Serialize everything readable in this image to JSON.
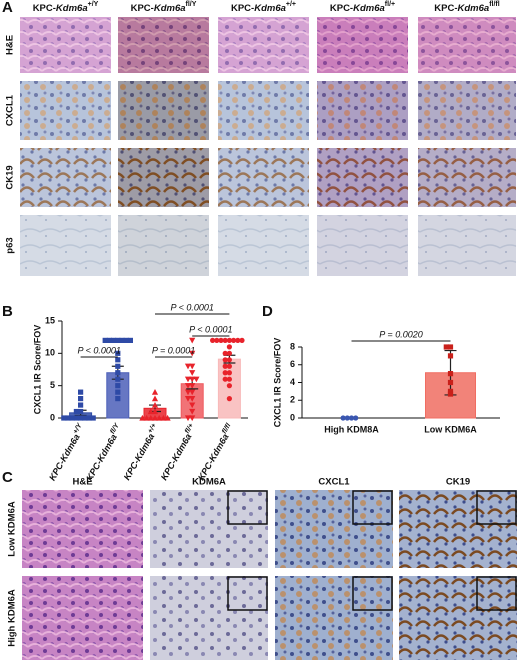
{
  "panel_labels": [
    "A",
    "B",
    "C",
    "D"
  ],
  "panel_a": {
    "columns": [
      {
        "prefix": "KPC-",
        "gene": "Kdm6a",
        "sup": "+/Y"
      },
      {
        "prefix": "KPC-",
        "gene": "Kdm6a",
        "sup": "fl/Y"
      },
      {
        "prefix": "KPC-",
        "gene": "Kdm6a",
        "sup": "+/+"
      },
      {
        "prefix": "KPC-",
        "gene": "Kdm6a",
        "sup": "fl/+"
      },
      {
        "prefix": "KPC-",
        "gene": "Kdm6a",
        "sup": "fl/fl"
      }
    ],
    "rows": [
      "H&E",
      "CXCL1",
      "CK19",
      "p63"
    ]
  },
  "panel_c": {
    "columns": [
      "H&E",
      "KDM6A",
      "CXCL1",
      "CK19"
    ],
    "rows": [
      "Low KDM6A",
      "High KDM6A"
    ]
  },
  "chart_data": [
    {
      "type": "bar",
      "y_label": "CXCL1 IR Score/FOV",
      "categories": [
        {
          "name": "KPC-Kdm6a",
          "sup": "+/Y"
        },
        {
          "name": "KPC-Kdm6a",
          "sup": "fl/Y"
        },
        {
          "name": "KPC-Kdm6a",
          "sup": "+/+"
        },
        {
          "name": "KPC-Kdm6a",
          "sup": "fl/+"
        },
        {
          "name": "KPC-Kdm6a",
          "sup": "fl/fl"
        }
      ],
      "values": [
        0.8,
        7.0,
        1.5,
        5.3,
        9.1
      ],
      "errors": [
        0.4,
        1.0,
        0.5,
        0.8,
        0.6
      ],
      "points": [
        [
          0,
          0,
          0,
          0,
          0,
          0,
          0,
          0,
          1,
          1,
          2,
          3,
          4
        ],
        [
          12,
          12,
          12,
          12,
          12,
          12,
          12,
          10,
          9,
          8,
          7,
          6,
          5,
          4,
          3
        ],
        [
          0,
          0,
          0,
          0,
          0,
          0,
          0,
          1,
          1,
          2,
          3,
          4
        ],
        [
          12,
          10,
          8,
          8,
          7,
          6,
          6,
          6,
          5,
          5,
          4,
          4,
          3,
          3,
          2,
          1,
          0,
          0
        ],
        [
          12,
          12,
          12,
          12,
          12,
          12,
          12,
          12,
          11,
          10,
          10,
          9,
          9,
          8,
          8,
          7,
          7,
          6,
          6,
          5,
          3
        ]
      ],
      "colors": [
        "#2e4aa6",
        "#4c5fb8",
        "#e8232b",
        "#ef5a5f",
        "#f8b9b9"
      ],
      "point_colors": [
        "#2e4aa6",
        "#2e4aa6",
        "#e8232b",
        "#e8232b",
        "#e8232b"
      ],
      "markers": [
        "square",
        "square",
        "triangle",
        "triangle-down",
        "circle"
      ],
      "ylim": [
        0,
        15
      ],
      "yticks": [
        0,
        5,
        10,
        15
      ],
      "comparisons": [
        {
          "label": "P < 0.0001",
          "groups": [
            0,
            1
          ]
        },
        {
          "label": "P = 0.0001",
          "groups": [
            2,
            3
          ]
        },
        {
          "label": "P < 0.0001",
          "groups": [
            3,
            4
          ]
        },
        {
          "label": "P < 0.0001",
          "groups": [
            2,
            4
          ]
        }
      ]
    },
    {
      "type": "bar",
      "y_label": "CXCL1 IR Score/FOV",
      "categories": [
        "High KDM8A",
        "Low KDM6A"
      ],
      "values": [
        0,
        5.1
      ],
      "errors": [
        0,
        2.5
      ],
      "points": [
        [
          0,
          0,
          0,
          0
        ],
        [
          8,
          8,
          7,
          5,
          4,
          3,
          2.7
        ]
      ],
      "colors": [
        "#3a56b0",
        "#f06d62"
      ],
      "point_colors": [
        "#3a56b0",
        "#c9201a"
      ],
      "markers": [
        "circle",
        "square"
      ],
      "ylim": [
        0,
        8
      ],
      "yticks": [
        0,
        2,
        4,
        6,
        8
      ],
      "comparisons": [
        {
          "label": "P = 0.0020",
          "groups": [
            0,
            1
          ]
        }
      ]
    }
  ]
}
